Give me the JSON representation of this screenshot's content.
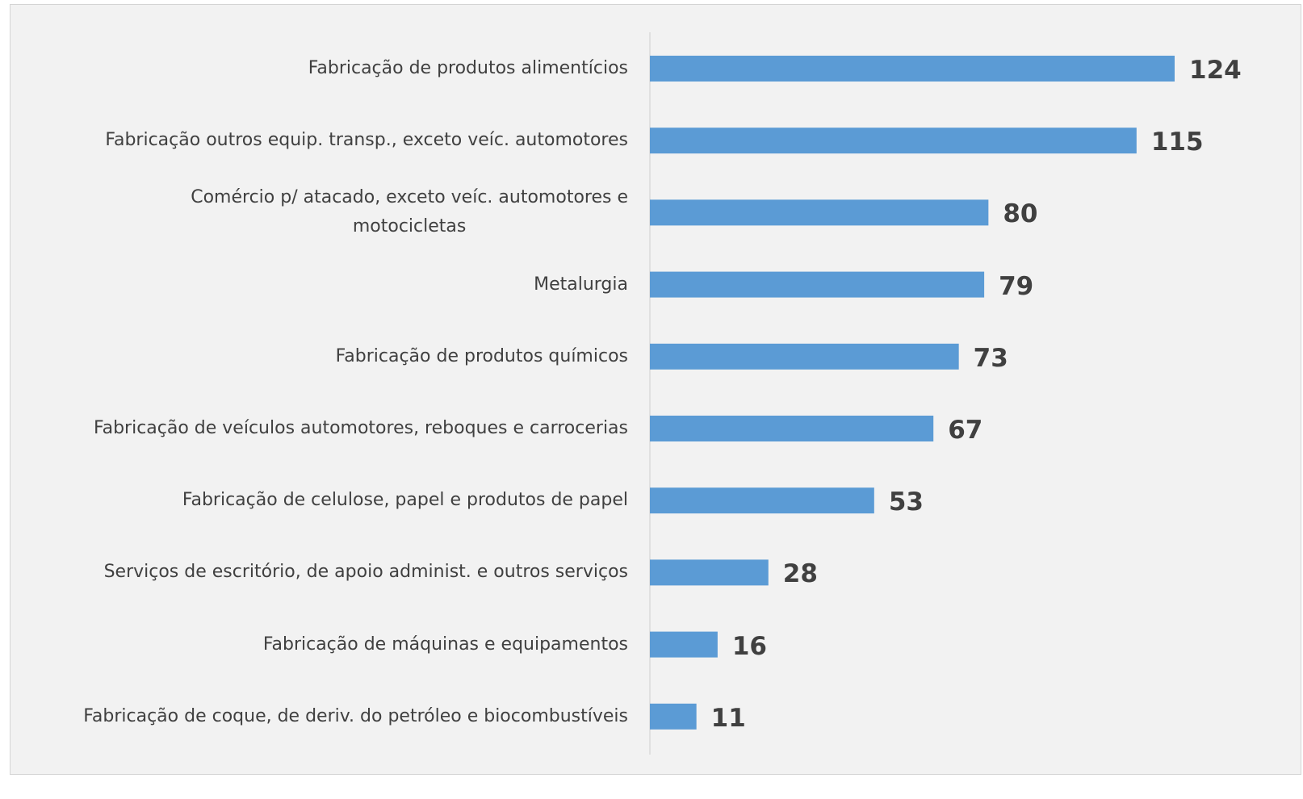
{
  "chart_data": {
    "type": "bar",
    "orientation": "horizontal",
    "categories": [
      "Fabricação de produtos alimentícios",
      "Fabricação outros equip. transp., exceto veíc. automotores",
      "Comércio p/ atacado, exceto veíc. automotores e\nmotocicletas",
      "Metalurgia",
      "Fabricação de produtos químicos",
      "Fabricação de veículos automotores, reboques e carrocerias",
      "Fabricação de celulose, papel e produtos de papel",
      "Serviços de escritório, de apoio administ. e outros serviços",
      "Fabricação de máquinas e equipamentos",
      "Fabricação de coque, de deriv. do petróleo e biocombustíveis"
    ],
    "values": [
      124,
      115,
      80,
      79,
      73,
      67,
      53,
      28,
      16,
      11
    ],
    "color": "#5b9bd5"
  }
}
